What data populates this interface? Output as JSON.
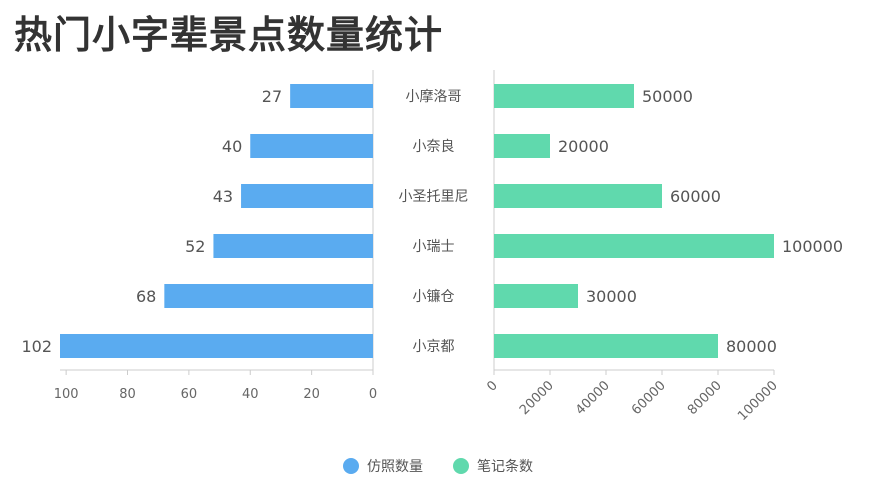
{
  "title": "热门小字辈景点数量统计",
  "colors": {
    "left": "#5aabf0",
    "right": "#60d9ad"
  },
  "chart_data": {
    "type": "bar",
    "orientation": "horizontal-butterfly",
    "categories": [
      "小摩洛哥",
      "小奈良",
      "小圣托里尼",
      "小瑞士",
      "小镰仓",
      "小京都"
    ],
    "series": [
      {
        "name": "仿照数量",
        "values": [
          27,
          40,
          43,
          52,
          68,
          102
        ],
        "axis_ticks": [
          100,
          80,
          60,
          40,
          20,
          0
        ],
        "xlim": [
          0,
          102
        ]
      },
      {
        "name": "笔记条数",
        "values": [
          50000,
          20000,
          60000,
          100000,
          30000,
          80000
        ],
        "axis_ticks": [
          0,
          20000,
          40000,
          60000,
          80000,
          100000
        ],
        "xlim": [
          0,
          100000
        ]
      }
    ],
    "legend": "bottom-center",
    "grid": false
  }
}
